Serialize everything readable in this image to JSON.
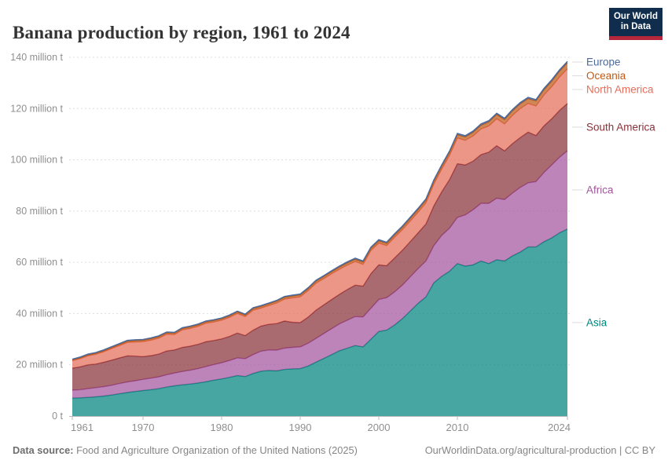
{
  "header": {
    "title": "Banana production by region, 1961 to 2024",
    "logo": {
      "line1": "Our World",
      "line2": "in Data"
    }
  },
  "footer": {
    "source_label": "Data source:",
    "source_text": " Food and Agriculture Organization of the United Nations (2025)",
    "credit": "OurWorldinData.org/agricultural-production | CC BY"
  },
  "chart_data": {
    "type": "area",
    "stacked": true,
    "title": "Banana production by region, 1961 to 2024",
    "unit": "million tonnes",
    "ylim": [
      0,
      140
    ],
    "grid": "dashed-horizontal",
    "legend_position": "right",
    "x_ticks": [
      1961,
      1970,
      1980,
      1990,
      2000,
      2010,
      2024
    ],
    "y_ticks": [
      {
        "value": 0,
        "label": "0 t"
      },
      {
        "value": 20,
        "label": "20 million t"
      },
      {
        "value": 40,
        "label": "40 million t"
      },
      {
        "value": 60,
        "label": "60 million t"
      },
      {
        "value": 80,
        "label": "80 million t"
      },
      {
        "value": 100,
        "label": "100 million t"
      },
      {
        "value": 120,
        "label": "120 million t"
      },
      {
        "value": 140,
        "label": "140 million t"
      }
    ],
    "x": [
      1961,
      1962,
      1963,
      1964,
      1965,
      1966,
      1967,
      1968,
      1969,
      1970,
      1971,
      1972,
      1973,
      1974,
      1975,
      1976,
      1977,
      1978,
      1979,
      1980,
      1981,
      1982,
      1983,
      1984,
      1985,
      1986,
      1987,
      1988,
      1989,
      1990,
      1991,
      1992,
      1993,
      1994,
      1995,
      1996,
      1997,
      1998,
      1999,
      2000,
      2001,
      2002,
      2003,
      2004,
      2005,
      2006,
      2007,
      2008,
      2009,
      2010,
      2011,
      2012,
      2013,
      2014,
      2015,
      2016,
      2017,
      2018,
      2019,
      2020,
      2021,
      2022,
      2023,
      2024
    ],
    "series": [
      {
        "name": "Asia",
        "color": "#00847E",
        "values": [
          7.0,
          7.1,
          7.3,
          7.5,
          7.8,
          8.2,
          8.7,
          9.2,
          9.6,
          10.0,
          10.3,
          10.7,
          11.3,
          11.8,
          12.2,
          12.5,
          12.9,
          13.4,
          14.0,
          14.5,
          15.1,
          15.8,
          15.4,
          16.6,
          17.5,
          17.8,
          17.6,
          18.2,
          18.4,
          18.5,
          19.5,
          21.0,
          22.5,
          24.0,
          25.5,
          26.5,
          27.5,
          27.0,
          30.0,
          33.0,
          33.5,
          35.5,
          38.0,
          41.0,
          44.0,
          46.5,
          52.0,
          54.5,
          56.5,
          59.5,
          58.5,
          59.0,
          60.5,
          59.5,
          61.0,
          60.5,
          62.5,
          64.0,
          66.0,
          66.0,
          68.0,
          69.5,
          71.5,
          73.0
        ]
      },
      {
        "name": "Africa",
        "color": "#A2559C",
        "values": [
          3.1,
          3.2,
          3.4,
          3.6,
          3.7,
          3.8,
          4.0,
          4.1,
          4.2,
          4.3,
          4.5,
          4.6,
          4.8,
          5.0,
          5.2,
          5.4,
          5.6,
          5.9,
          6.1,
          6.3,
          6.6,
          6.9,
          7.0,
          7.4,
          7.8,
          8.0,
          8.1,
          8.3,
          8.4,
          8.5,
          8.9,
          9.3,
          9.7,
          10.1,
          10.5,
          10.9,
          11.3,
          11.7,
          12.1,
          12.5,
          12.7,
          12.9,
          13.1,
          13.3,
          13.5,
          14.0,
          14.5,
          16.0,
          16.8,
          18.0,
          20.0,
          21.5,
          22.5,
          23.5,
          24.0,
          24.0,
          24.5,
          25.2,
          25.0,
          25.5,
          27.0,
          28.5,
          29.5,
          30.5
        ]
      },
      {
        "name": "South America",
        "color": "#883039",
        "values": [
          8.6,
          8.9,
          9.3,
          9.2,
          9.5,
          9.8,
          10.0,
          10.2,
          9.6,
          8.9,
          8.8,
          8.9,
          9.3,
          9.0,
          9.4,
          9.4,
          9.5,
          9.7,
          9.4,
          9.3,
          9.4,
          9.7,
          9.0,
          9.5,
          9.8,
          10.0,
          10.4,
          10.6,
          9.8,
          9.5,
          10.2,
          11.0,
          11.2,
          11.4,
          11.5,
          12.0,
          12.3,
          12.0,
          13.5,
          13.5,
          12.5,
          13.3,
          13.6,
          13.8,
          14.0,
          14.5,
          15.5,
          17.0,
          19.0,
          21.0,
          19.5,
          19.0,
          19.0,
          20.0,
          20.5,
          19.0,
          19.3,
          19.5,
          19.8,
          18.0,
          18.2,
          18.0,
          18.3,
          18.5
        ]
      },
      {
        "name": "North America",
        "color": "#E56E5A",
        "values": [
          2.9,
          3.2,
          3.5,
          3.8,
          4.1,
          4.5,
          4.8,
          5.2,
          5.5,
          5.8,
          6.0,
          6.2,
          6.5,
          6.0,
          6.8,
          6.9,
          7.0,
          7.2,
          7.2,
          7.3,
          7.4,
          7.6,
          7.4,
          7.8,
          7.0,
          7.3,
          8.0,
          8.5,
          9.5,
          10.0,
          10.3,
          10.5,
          10.2,
          10.0,
          9.8,
          9.5,
          9.2,
          8.5,
          9.0,
          8.5,
          7.8,
          8.0,
          8.0,
          8.0,
          8.0,
          8.2,
          8.5,
          8.8,
          9.4,
          10.0,
          9.6,
          9.8,
          10.0,
          10.2,
          10.5,
          10.5,
          11.0,
          11.3,
          11.2,
          11.5,
          12.0,
          12.5,
          13.0,
          13.5
        ]
      },
      {
        "name": "Oceania",
        "color": "#BE5915",
        "values": [
          0.3,
          0.33,
          0.36,
          0.4,
          0.43,
          0.46,
          0.5,
          0.53,
          0.57,
          0.6,
          0.6,
          0.6,
          0.6,
          0.6,
          0.6,
          0.6,
          0.6,
          0.6,
          0.6,
          0.6,
          0.62,
          0.64,
          0.66,
          0.68,
          0.7,
          0.72,
          0.74,
          0.76,
          0.78,
          0.8,
          0.8,
          0.82,
          0.83,
          0.85,
          0.86,
          0.87,
          0.88,
          0.89,
          0.9,
          0.9,
          0.92,
          0.95,
          1.0,
          1.05,
          1.1,
          1.12,
          1.15,
          1.2,
          1.25,
          1.3,
          1.35,
          1.45,
          1.5,
          1.6,
          1.7,
          1.75,
          1.8,
          1.85,
          1.9,
          2.0,
          2.1,
          2.2,
          2.3,
          2.4
        ]
      },
      {
        "name": "Europe",
        "color": "#4C6A9C",
        "values": [
          0.3,
          0.3,
          0.3,
          0.3,
          0.3,
          0.3,
          0.3,
          0.3,
          0.3,
          0.3,
          0.3,
          0.3,
          0.3,
          0.3,
          0.3,
          0.3,
          0.3,
          0.3,
          0.3,
          0.3,
          0.3,
          0.3,
          0.3,
          0.3,
          0.3,
          0.3,
          0.3,
          0.3,
          0.3,
          0.3,
          0.35,
          0.36,
          0.38,
          0.4,
          0.41,
          0.42,
          0.43,
          0.44,
          0.44,
          0.45,
          0.45,
          0.45,
          0.45,
          0.46,
          0.46,
          0.46,
          0.47,
          0.47,
          0.47,
          0.47,
          0.48,
          0.48,
          0.48,
          0.48,
          0.48,
          0.48,
          0.49,
          0.49,
          0.49,
          0.5,
          0.5,
          0.5,
          0.5,
          0.5
        ]
      }
    ],
    "legend_top_to_bottom": [
      "Europe",
      "Oceania",
      "North America",
      "South America",
      "Africa",
      "Asia"
    ]
  }
}
